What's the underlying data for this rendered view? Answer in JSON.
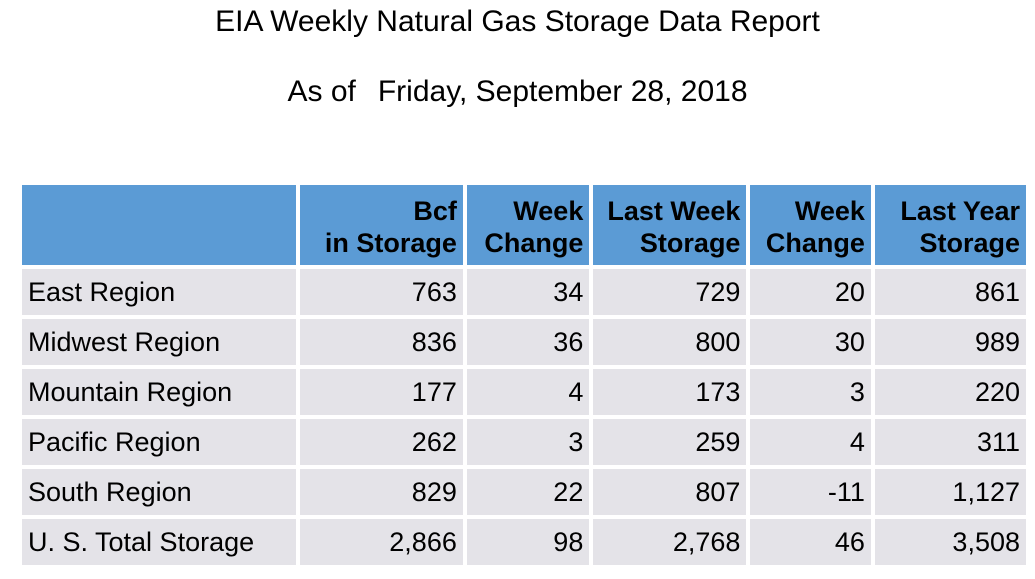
{
  "report": {
    "title": "EIA Weekly Natural Gas Storage Data Report",
    "as_of_label": "As of",
    "as_of_date": "Friday, September 28, 2018"
  },
  "table": {
    "headers": [
      {
        "line1": "",
        "line2": ""
      },
      {
        "line1": "Bcf",
        "line2": "in Storage"
      },
      {
        "line1": "Week",
        "line2": "Change"
      },
      {
        "line1": "Last Week",
        "line2": "Storage"
      },
      {
        "line1": "Week",
        "line2": "Change"
      },
      {
        "line1": "Last Year",
        "line2": "Storage"
      }
    ],
    "rows": [
      {
        "region": "East Region",
        "bcf_in_storage": "763",
        "week_change": "34",
        "last_week_storage": "729",
        "last_week_change": "20",
        "last_year_storage": "861"
      },
      {
        "region": "Midwest Region",
        "bcf_in_storage": "836",
        "week_change": "36",
        "last_week_storage": "800",
        "last_week_change": "30",
        "last_year_storage": "989"
      },
      {
        "region": "Mountain Region",
        "bcf_in_storage": "177",
        "week_change": "4",
        "last_week_storage": "173",
        "last_week_change": "3",
        "last_year_storage": "220"
      },
      {
        "region": "Pacific Region",
        "bcf_in_storage": "262",
        "week_change": "3",
        "last_week_storage": "259",
        "last_week_change": "4",
        "last_year_storage": "311"
      },
      {
        "region": "South Region",
        "bcf_in_storage": "829",
        "week_change": "22",
        "last_week_storage": "807",
        "last_week_change": "-11",
        "last_year_storage": "1,127"
      },
      {
        "region": "U. S. Total Storage",
        "bcf_in_storage": "2,866",
        "week_change": "98",
        "last_week_storage": "2,768",
        "last_week_change": "46",
        "last_year_storage": "3,508"
      }
    ]
  },
  "colors": {
    "header_background": "#5b9bd5",
    "cell_background": "#e4e3e8"
  }
}
